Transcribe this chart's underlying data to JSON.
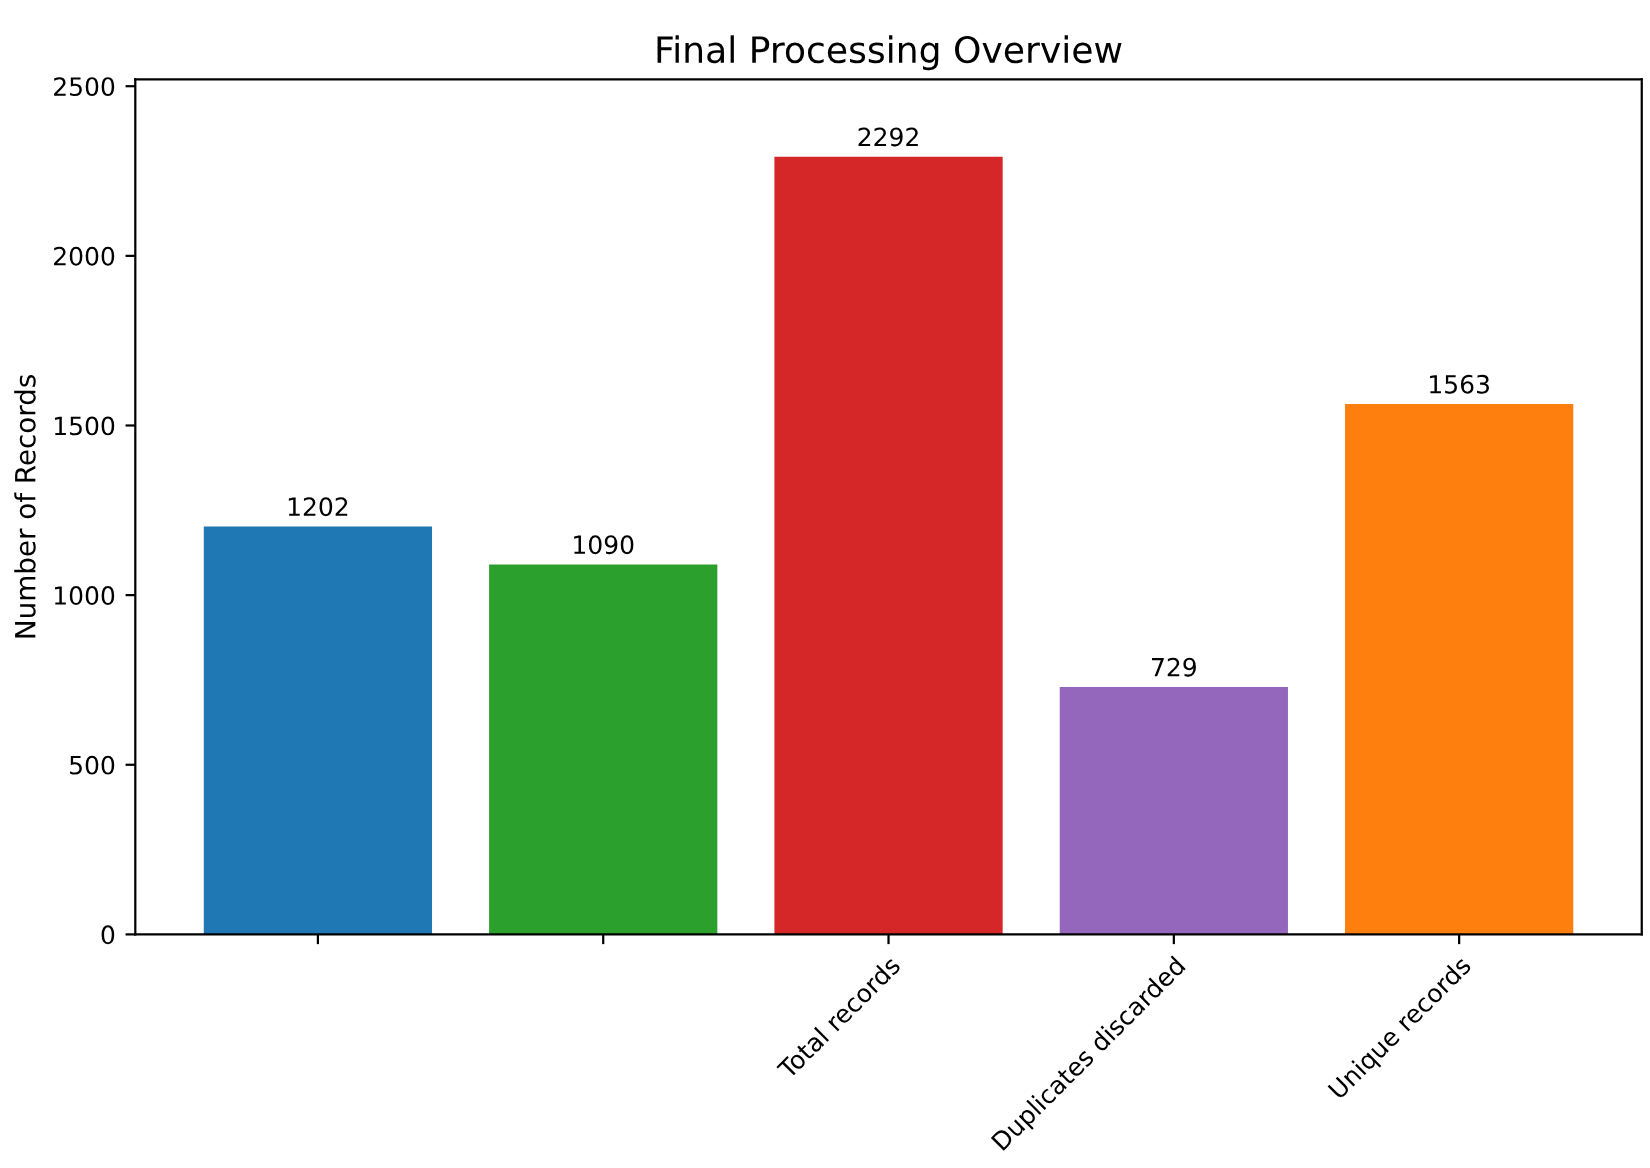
{
  "chart_data": {
    "type": "bar",
    "title": "Final Processing Overview",
    "ylabel": "Number of Records",
    "categories": [
      null,
      null,
      "Total records",
      "Duplicates discarded",
      "Unique records"
    ],
    "values": [
      1202,
      1090,
      2292,
      729,
      1563
    ],
    "colors": [
      "#1f77b4",
      "#2ca02c",
      "#d62728",
      "#9467bd",
      "#ff7f0e"
    ],
    "ylim": [
      0,
      2520
    ],
    "yticks": [
      0,
      500,
      1000,
      1500,
      2000,
      2500
    ],
    "data_labels": true,
    "grid": false,
    "legend": false
  }
}
